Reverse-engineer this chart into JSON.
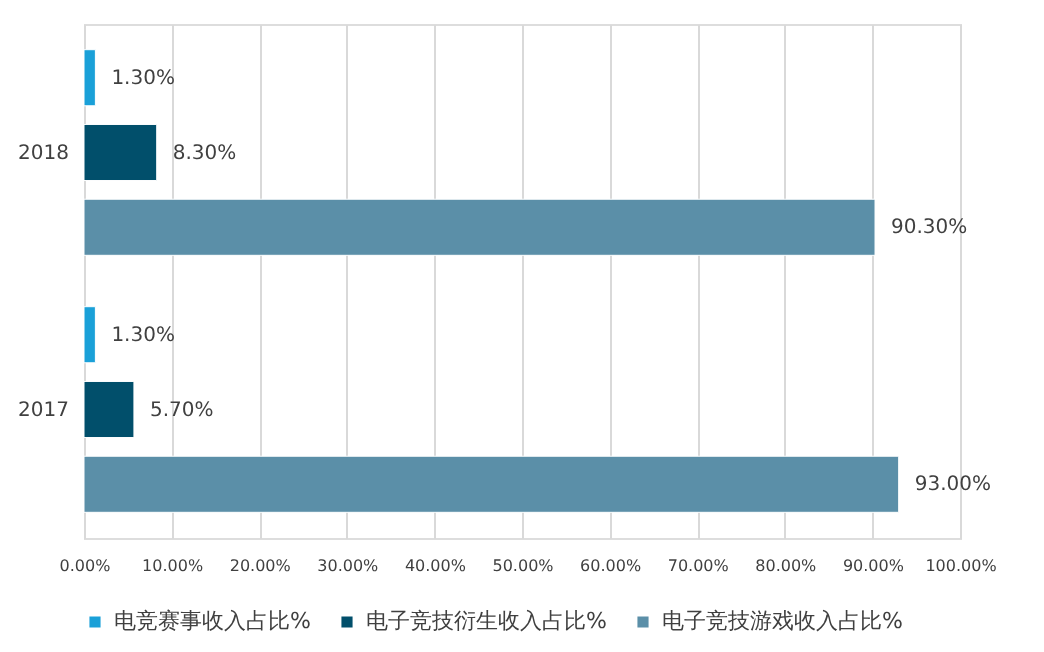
{
  "chart_data": {
    "type": "bar",
    "orientation": "horizontal",
    "categories": [
      "2018",
      "2017"
    ],
    "series": [
      {
        "name": "电竞赛事收入占比%",
        "color": "#1aa0d8",
        "values": [
          1.3,
          1.3
        ],
        "value_labels": [
          "1.30%",
          "1.30%"
        ]
      },
      {
        "name": "电子竞技衍生收入占比%",
        "color": "#014f6b",
        "values": [
          8.3,
          5.7
        ],
        "value_labels": [
          "8.30%",
          "5.70%"
        ]
      },
      {
        "name": "电子竞技游戏收入占比%",
        "color": "#5b8fa8",
        "values": [
          90.3,
          93.0
        ],
        "value_labels": [
          "90.30%",
          "93.00%"
        ]
      }
    ],
    "xlim": [
      0,
      100
    ],
    "xticks": [
      {
        "value": 0,
        "label": "0.00%"
      },
      {
        "value": 10,
        "label": "10.00%"
      },
      {
        "value": 20,
        "label": "20.00%"
      },
      {
        "value": 30,
        "label": "30.00%"
      },
      {
        "value": 40,
        "label": "40.00%"
      },
      {
        "value": 50,
        "label": "50.00%"
      },
      {
        "value": 60,
        "label": "60.00%"
      },
      {
        "value": 70,
        "label": "70.00%"
      },
      {
        "value": 80,
        "label": "80.00%"
      },
      {
        "value": 90,
        "label": "90.00%"
      },
      {
        "value": 100,
        "label": "100.00%"
      }
    ],
    "grid": "x",
    "legend": "bottom"
  }
}
